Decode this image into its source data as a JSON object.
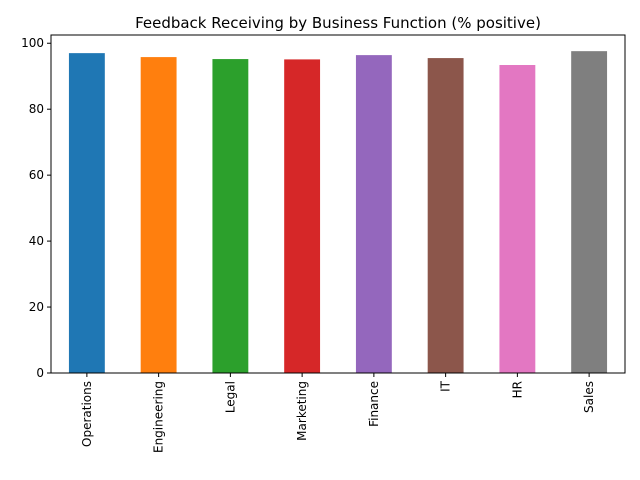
{
  "chart_data": {
    "type": "bar",
    "title": "Feedback Receiving by Business Function (% positive)",
    "xlabel": "",
    "ylabel": "",
    "categories": [
      "Operations",
      "Engineering",
      "Legal",
      "Marketing",
      "Finance",
      "IT",
      "HR",
      "Sales"
    ],
    "values": [
      97.0,
      95.8,
      95.2,
      95.1,
      96.4,
      95.5,
      93.4,
      97.6
    ],
    "colors": [
      "#1f77b4",
      "#ff7f0e",
      "#2ca02c",
      "#d62728",
      "#9467bd",
      "#8c564b",
      "#e377c2",
      "#7f7f7f"
    ],
    "ylim": [
      0,
      102.5
    ],
    "yticks": [
      0,
      20,
      40,
      60,
      80,
      100
    ],
    "grid": false,
    "legend": "none"
  }
}
